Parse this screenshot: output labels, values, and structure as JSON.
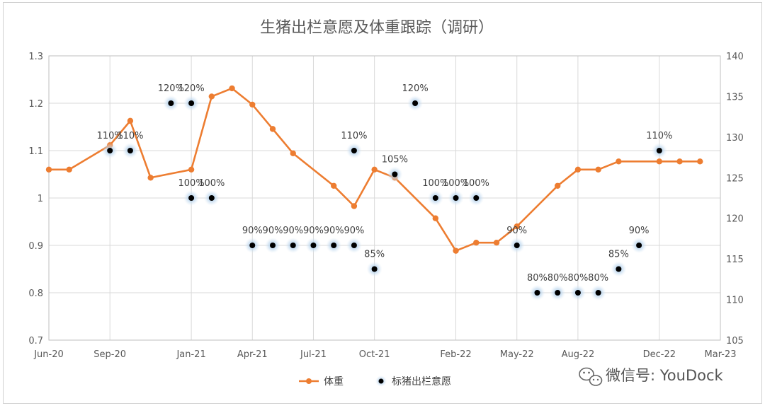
{
  "chart_data": {
    "type": "line",
    "title": "生猪出栏意愿及体重跟踪（调研）",
    "x_ticks": [
      "Jun-20",
      "Sep-20",
      "Jan-21",
      "Apr-21",
      "Jul-21",
      "Oct-21",
      "Feb-22",
      "May-22",
      "Aug-22",
      "Dec-22",
      "Mar-23"
    ],
    "y_left": {
      "min": 0.7,
      "max": 1.3,
      "step": 0.1,
      "ticks": [
        "0.7",
        "0.8",
        "0.9",
        "1",
        "1.1",
        "1.2",
        "1.3"
      ]
    },
    "y_right": {
      "min": 105,
      "max": 140,
      "step": 5,
      "ticks": [
        "105",
        "110",
        "115",
        "120",
        "125",
        "130",
        "135",
        "140"
      ]
    },
    "grid": true,
    "legend_position": "bottom",
    "series": [
      {
        "name": "体重",
        "axis": "right",
        "color": "#ED7D31",
        "marker": "circle",
        "points": [
          {
            "x": "2020-06",
            "y": 126
          },
          {
            "x": "2020-07",
            "y": 126
          },
          {
            "x": "2020-09",
            "y": 129
          },
          {
            "x": "2020-10",
            "y": 132
          },
          {
            "x": "2020-11",
            "y": 125
          },
          {
            "x": "2021-01",
            "y": 126
          },
          {
            "x": "2021-02",
            "y": 135
          },
          {
            "x": "2021-03",
            "y": 136
          },
          {
            "x": "2021-04",
            "y": 134
          },
          {
            "x": "2021-05",
            "y": 131
          },
          {
            "x": "2021-06",
            "y": 128
          },
          {
            "x": "2021-08",
            "y": 124
          },
          {
            "x": "2021-09",
            "y": 121.5
          },
          {
            "x": "2021-10",
            "y": 126
          },
          {
            "x": "2021-11",
            "y": 125
          },
          {
            "x": "2022-01",
            "y": 120
          },
          {
            "x": "2022-02",
            "y": 116
          },
          {
            "x": "2022-03",
            "y": 117
          },
          {
            "x": "2022-04",
            "y": 117
          },
          {
            "x": "2022-05",
            "y": 119
          },
          {
            "x": "2022-07",
            "y": 124
          },
          {
            "x": "2022-08",
            "y": 126
          },
          {
            "x": "2022-09",
            "y": 126
          },
          {
            "x": "2022-10",
            "y": 127
          },
          {
            "x": "2022-12",
            "y": 127
          },
          {
            "x": "2023-01",
            "y": 127
          },
          {
            "x": "2023-02",
            "y": 127
          }
        ]
      },
      {
        "name": "标猪出栏意愿",
        "axis": "left",
        "color": "#000000",
        "glow_color": "#9DC3E6",
        "marker": "circle",
        "points": [
          {
            "x": "2020-09",
            "y": 1.1,
            "label": "110%"
          },
          {
            "x": "2020-10",
            "y": 1.1,
            "label": "110%"
          },
          {
            "x": "2020-12",
            "y": 1.2,
            "label": "120%"
          },
          {
            "x": "2021-01",
            "y": 1.2,
            "label": "120%"
          },
          {
            "x": "2021-01",
            "y": 1.0,
            "label": "100%"
          },
          {
            "x": "2021-02",
            "y": 1.0,
            "label": "100%"
          },
          {
            "x": "2021-04",
            "y": 0.9,
            "label": "90%"
          },
          {
            "x": "2021-05",
            "y": 0.9,
            "label": "90%"
          },
          {
            "x": "2021-06",
            "y": 0.9,
            "label": "90%"
          },
          {
            "x": "2021-07",
            "y": 0.9,
            "label": "90%"
          },
          {
            "x": "2021-08",
            "y": 0.9,
            "label": "90%"
          },
          {
            "x": "2021-09",
            "y": 1.1,
            "label": "110%"
          },
          {
            "x": "2021-09",
            "y": 0.9,
            "label": "90%"
          },
          {
            "x": "2021-10",
            "y": 0.85,
            "label": "85%"
          },
          {
            "x": "2021-11",
            "y": 1.05,
            "label": "105%"
          },
          {
            "x": "2021-12",
            "y": 1.2,
            "label": "120%"
          },
          {
            "x": "2022-01",
            "y": 1.0,
            "label": "100%"
          },
          {
            "x": "2022-02",
            "y": 1.0,
            "label": "100%"
          },
          {
            "x": "2022-03",
            "y": 1.0,
            "label": "100%"
          },
          {
            "x": "2022-05",
            "y": 0.9,
            "label": "90%"
          },
          {
            "x": "2022-06",
            "y": 0.8,
            "label": "80%"
          },
          {
            "x": "2022-07",
            "y": 0.8,
            "label": "80%"
          },
          {
            "x": "2022-08",
            "y": 0.8,
            "label": "80%"
          },
          {
            "x": "2022-09",
            "y": 0.8,
            "label": "80%"
          },
          {
            "x": "2022-10",
            "y": 0.85,
            "label": "85%"
          },
          {
            "x": "2022-11",
            "y": 0.9,
            "label": "90%"
          },
          {
            "x": "2022-12",
            "y": 1.1,
            "label": "110%"
          }
        ]
      }
    ]
  },
  "watermark": {
    "text": "微信号: YouDock",
    "icon": "wechat-logo-icon"
  }
}
